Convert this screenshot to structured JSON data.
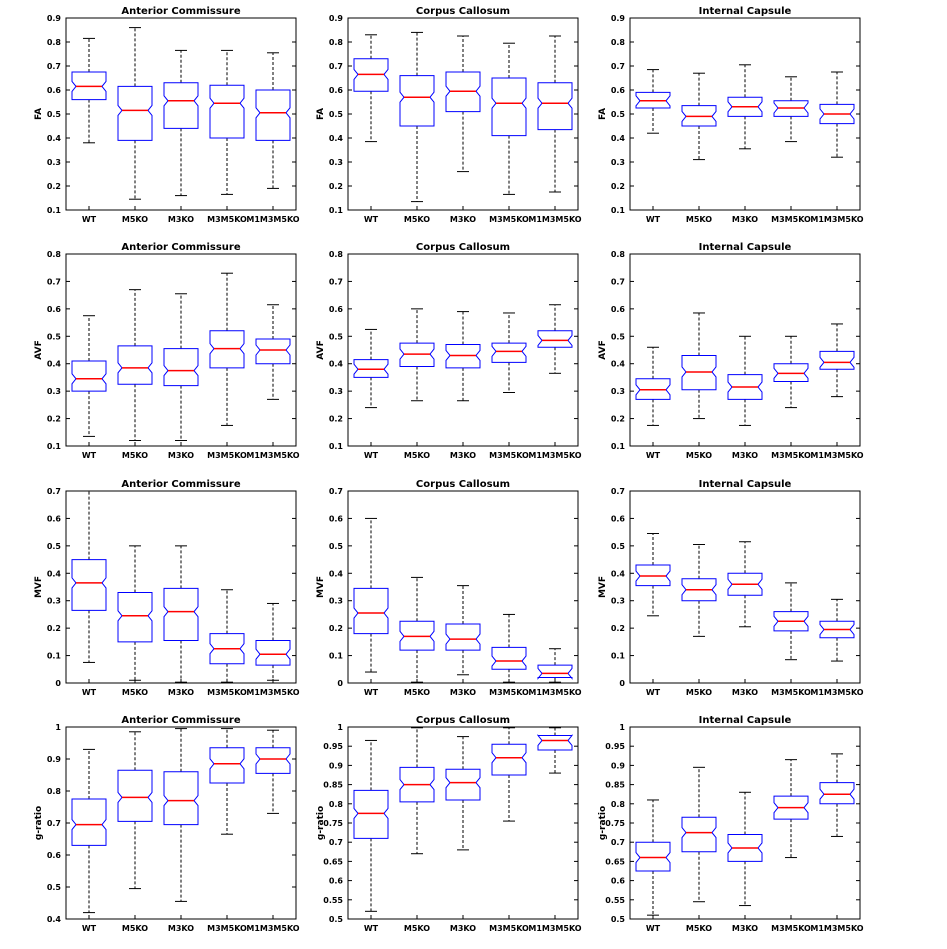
{
  "colors": {
    "box": "#0000ff",
    "median": "#ff0000",
    "whisker": "#000000",
    "frame": "#000000",
    "background": "#ffffff"
  },
  "chart_data": [
    {
      "type": "box",
      "title": "Anterior Commissure",
      "ylabel": "FA",
      "ylim": [
        0.1,
        0.9
      ],
      "yticks": [
        0.1,
        0.2,
        0.3,
        0.4,
        0.5,
        0.6,
        0.7,
        0.8,
        0.9
      ],
      "categories": [
        "WT",
        "M5KO",
        "M3KO",
        "M3M5KO",
        "M1M3M5KO"
      ],
      "boxes": [
        {
          "whislo": 0.38,
          "q1": 0.56,
          "med": 0.615,
          "q3": 0.675,
          "whishi": 0.815
        },
        {
          "whislo": 0.145,
          "q1": 0.39,
          "med": 0.515,
          "q3": 0.615,
          "whishi": 0.86
        },
        {
          "whislo": 0.16,
          "q1": 0.44,
          "med": 0.555,
          "q3": 0.63,
          "whishi": 0.765
        },
        {
          "whislo": 0.165,
          "q1": 0.4,
          "med": 0.545,
          "q3": 0.62,
          "whishi": 0.765
        },
        {
          "whislo": 0.19,
          "q1": 0.39,
          "med": 0.505,
          "q3": 0.6,
          "whishi": 0.755
        }
      ]
    },
    {
      "type": "box",
      "title": "Corpus Callosum",
      "ylabel": "FA",
      "ylim": [
        0.1,
        0.9
      ],
      "yticks": [
        0.1,
        0.2,
        0.3,
        0.4,
        0.5,
        0.6,
        0.7,
        0.8,
        0.9
      ],
      "categories": [
        "WT",
        "M5KO",
        "M3KO",
        "M3M5KO",
        "M1M3M5KO"
      ],
      "boxes": [
        {
          "whislo": 0.385,
          "q1": 0.595,
          "med": 0.665,
          "q3": 0.73,
          "whishi": 0.83
        },
        {
          "whislo": 0.135,
          "q1": 0.45,
          "med": 0.57,
          "q3": 0.66,
          "whishi": 0.84
        },
        {
          "whislo": 0.26,
          "q1": 0.51,
          "med": 0.595,
          "q3": 0.675,
          "whishi": 0.825
        },
        {
          "whislo": 0.165,
          "q1": 0.41,
          "med": 0.545,
          "q3": 0.65,
          "whishi": 0.795
        },
        {
          "whislo": 0.175,
          "q1": 0.435,
          "med": 0.545,
          "q3": 0.63,
          "whishi": 0.825
        }
      ]
    },
    {
      "type": "box",
      "title": "Internal Capsule",
      "ylabel": "FA",
      "ylim": [
        0.1,
        0.9
      ],
      "yticks": [
        0.1,
        0.2,
        0.3,
        0.4,
        0.5,
        0.6,
        0.7,
        0.8,
        0.9
      ],
      "categories": [
        "WT",
        "M5KO",
        "M3KO",
        "M3M5KO",
        "M1M3M5KO"
      ],
      "boxes": [
        {
          "whislo": 0.42,
          "q1": 0.525,
          "med": 0.555,
          "q3": 0.59,
          "whishi": 0.685
        },
        {
          "whislo": 0.31,
          "q1": 0.45,
          "med": 0.49,
          "q3": 0.535,
          "whishi": 0.67
        },
        {
          "whislo": 0.355,
          "q1": 0.49,
          "med": 0.53,
          "q3": 0.57,
          "whishi": 0.705
        },
        {
          "whislo": 0.385,
          "q1": 0.49,
          "med": 0.525,
          "q3": 0.555,
          "whishi": 0.655
        },
        {
          "whislo": 0.32,
          "q1": 0.46,
          "med": 0.5,
          "q3": 0.54,
          "whishi": 0.675
        }
      ]
    },
    {
      "type": "box",
      "title": "Anterior Commissure",
      "ylabel": "AVF",
      "ylim": [
        0.1,
        0.8
      ],
      "yticks": [
        0.1,
        0.2,
        0.3,
        0.4,
        0.5,
        0.6,
        0.7,
        0.8
      ],
      "categories": [
        "WT",
        "M5KO",
        "M3KO",
        "M3M5KO",
        "M1M3M5KO"
      ],
      "boxes": [
        {
          "whislo": 0.135,
          "q1": 0.3,
          "med": 0.345,
          "q3": 0.41,
          "whishi": 0.575
        },
        {
          "whislo": 0.12,
          "q1": 0.325,
          "med": 0.385,
          "q3": 0.465,
          "whishi": 0.67
        },
        {
          "whislo": 0.12,
          "q1": 0.32,
          "med": 0.375,
          "q3": 0.455,
          "whishi": 0.655
        },
        {
          "whislo": 0.175,
          "q1": 0.385,
          "med": 0.455,
          "q3": 0.52,
          "whishi": 0.73
        },
        {
          "whislo": 0.27,
          "q1": 0.4,
          "med": 0.45,
          "q3": 0.49,
          "whishi": 0.615
        }
      ]
    },
    {
      "type": "box",
      "title": "Corpus Callosum",
      "ylabel": "AVF",
      "ylim": [
        0.1,
        0.8
      ],
      "yticks": [
        0.1,
        0.2,
        0.3,
        0.4,
        0.5,
        0.6,
        0.7,
        0.8
      ],
      "categories": [
        "WT",
        "M5KO",
        "M3KO",
        "M3M5KO",
        "M1M3M5KO"
      ],
      "boxes": [
        {
          "whislo": 0.24,
          "q1": 0.35,
          "med": 0.38,
          "q3": 0.415,
          "whishi": 0.525
        },
        {
          "whislo": 0.265,
          "q1": 0.39,
          "med": 0.435,
          "q3": 0.475,
          "whishi": 0.6
        },
        {
          "whislo": 0.265,
          "q1": 0.385,
          "med": 0.43,
          "q3": 0.47,
          "whishi": 0.59
        },
        {
          "whislo": 0.295,
          "q1": 0.405,
          "med": 0.445,
          "q3": 0.475,
          "whishi": 0.585
        },
        {
          "whislo": 0.365,
          "q1": 0.46,
          "med": 0.485,
          "q3": 0.52,
          "whishi": 0.615
        }
      ]
    },
    {
      "type": "box",
      "title": "Internal Capsule",
      "ylabel": "AVF",
      "ylim": [
        0.1,
        0.8
      ],
      "yticks": [
        0.1,
        0.2,
        0.3,
        0.4,
        0.5,
        0.6,
        0.7,
        0.8
      ],
      "categories": [
        "WT",
        "M5KO",
        "M3KO",
        "M3M5KO",
        "M1M3M5KO"
      ],
      "boxes": [
        {
          "whislo": 0.175,
          "q1": 0.27,
          "med": 0.305,
          "q3": 0.345,
          "whishi": 0.46
        },
        {
          "whislo": 0.2,
          "q1": 0.305,
          "med": 0.37,
          "q3": 0.43,
          "whishi": 0.585
        },
        {
          "whislo": 0.175,
          "q1": 0.27,
          "med": 0.315,
          "q3": 0.36,
          "whishi": 0.5
        },
        {
          "whislo": 0.24,
          "q1": 0.335,
          "med": 0.365,
          "q3": 0.4,
          "whishi": 0.5
        },
        {
          "whislo": 0.28,
          "q1": 0.38,
          "med": 0.405,
          "q3": 0.445,
          "whishi": 0.545
        }
      ]
    },
    {
      "type": "box",
      "title": "Anterior Commissure",
      "ylabel": "MVF",
      "ylim": [
        0,
        0.7
      ],
      "yticks": [
        0,
        0.1,
        0.2,
        0.3,
        0.4,
        0.5,
        0.6,
        0.7
      ],
      "categories": [
        "WT",
        "M5KO",
        "M3KO",
        "M3M5KO",
        "M1M3M5KO"
      ],
      "boxes": [
        {
          "whislo": 0.075,
          "q1": 0.265,
          "med": 0.365,
          "q3": 0.45,
          "whishi": 0.7
        },
        {
          "whislo": 0.01,
          "q1": 0.15,
          "med": 0.245,
          "q3": 0.33,
          "whishi": 0.5
        },
        {
          "whislo": 0.003,
          "q1": 0.155,
          "med": 0.26,
          "q3": 0.345,
          "whishi": 0.5
        },
        {
          "whislo": 0.003,
          "q1": 0.07,
          "med": 0.125,
          "q3": 0.18,
          "whishi": 0.34
        },
        {
          "whislo": 0.01,
          "q1": 0.065,
          "med": 0.105,
          "q3": 0.155,
          "whishi": 0.29
        }
      ]
    },
    {
      "type": "box",
      "title": "Corpus Callosum",
      "ylabel": "MVF",
      "ylim": [
        0,
        0.7
      ],
      "yticks": [
        0,
        0.1,
        0.2,
        0.3,
        0.4,
        0.5,
        0.6,
        0.7
      ],
      "categories": [
        "WT",
        "M5KO",
        "M3KO",
        "M3M5KO",
        "M1M3M5KO"
      ],
      "boxes": [
        {
          "whislo": 0.04,
          "q1": 0.18,
          "med": 0.255,
          "q3": 0.345,
          "whishi": 0.6
        },
        {
          "whislo": 0.003,
          "q1": 0.12,
          "med": 0.17,
          "q3": 0.225,
          "whishi": 0.385
        },
        {
          "whislo": 0.03,
          "q1": 0.12,
          "med": 0.16,
          "q3": 0.215,
          "whishi": 0.355
        },
        {
          "whislo": 0.003,
          "q1": 0.05,
          "med": 0.08,
          "q3": 0.13,
          "whishi": 0.25
        },
        {
          "whislo": 0.003,
          "q1": 0.02,
          "med": 0.035,
          "q3": 0.065,
          "whishi": 0.125
        }
      ]
    },
    {
      "type": "box",
      "title": "Internal Capsule",
      "ylabel": "MVF",
      "ylim": [
        0,
        0.7
      ],
      "yticks": [
        0,
        0.1,
        0.2,
        0.3,
        0.4,
        0.5,
        0.6,
        0.7
      ],
      "categories": [
        "WT",
        "M5KO",
        "M3KO",
        "M3M5KO",
        "M1M3M5KO"
      ],
      "boxes": [
        {
          "whislo": 0.245,
          "q1": 0.355,
          "med": 0.39,
          "q3": 0.43,
          "whishi": 0.545
        },
        {
          "whislo": 0.17,
          "q1": 0.3,
          "med": 0.34,
          "q3": 0.38,
          "whishi": 0.505
        },
        {
          "whislo": 0.205,
          "q1": 0.32,
          "med": 0.36,
          "q3": 0.4,
          "whishi": 0.515
        },
        {
          "whislo": 0.085,
          "q1": 0.19,
          "med": 0.225,
          "q3": 0.26,
          "whishi": 0.365
        },
        {
          "whislo": 0.08,
          "q1": 0.165,
          "med": 0.195,
          "q3": 0.225,
          "whishi": 0.305
        }
      ]
    },
    {
      "type": "box",
      "title": "Anterior Commissure",
      "ylabel": "g-ratio",
      "ylim": [
        0.4,
        1
      ],
      "yticks": [
        0.4,
        0.5,
        0.6,
        0.7,
        0.8,
        0.9,
        1
      ],
      "categories": [
        "WT",
        "M5KO",
        "M3KO",
        "M3M5KO",
        "M1M3M5KO"
      ],
      "boxes": [
        {
          "whislo": 0.42,
          "q1": 0.63,
          "med": 0.695,
          "q3": 0.775,
          "whishi": 0.93
        },
        {
          "whislo": 0.495,
          "q1": 0.705,
          "med": 0.78,
          "q3": 0.865,
          "whishi": 0.985
        },
        {
          "whislo": 0.455,
          "q1": 0.695,
          "med": 0.77,
          "q3": 0.86,
          "whishi": 0.995
        },
        {
          "whislo": 0.665,
          "q1": 0.825,
          "med": 0.885,
          "q3": 0.935,
          "whishi": 0.995
        },
        {
          "whislo": 0.73,
          "q1": 0.855,
          "med": 0.9,
          "q3": 0.935,
          "whishi": 0.99
        }
      ]
    },
    {
      "type": "box",
      "title": "Corpus Callosum",
      "ylabel": "g-ratio",
      "ylim": [
        0.5,
        1
      ],
      "yticks": [
        0.5,
        0.55,
        0.6,
        0.65,
        0.7,
        0.75,
        0.8,
        0.85,
        0.9,
        0.95,
        1
      ],
      "categories": [
        "WT",
        "M5KO",
        "M3KO",
        "M3M5KO",
        "M1M3M5KO"
      ],
      "boxes": [
        {
          "whislo": 0.52,
          "q1": 0.71,
          "med": 0.775,
          "q3": 0.835,
          "whishi": 0.965
        },
        {
          "whislo": 0.67,
          "q1": 0.805,
          "med": 0.85,
          "q3": 0.895,
          "whishi": 0.998
        },
        {
          "whislo": 0.68,
          "q1": 0.81,
          "med": 0.855,
          "q3": 0.89,
          "whishi": 0.975
        },
        {
          "whislo": 0.755,
          "q1": 0.875,
          "med": 0.92,
          "q3": 0.955,
          "whishi": 0.998
        },
        {
          "whislo": 0.88,
          "q1": 0.94,
          "med": 0.965,
          "q3": 0.978,
          "whishi": 0.998
        }
      ]
    },
    {
      "type": "box",
      "title": "Internal Capsule",
      "ylabel": "g-ratio",
      "ylim": [
        0.5,
        1
      ],
      "yticks": [
        0.5,
        0.55,
        0.6,
        0.65,
        0.7,
        0.75,
        0.8,
        0.85,
        0.9,
        0.95,
        1
      ],
      "categories": [
        "WT",
        "M5KO",
        "M3KO",
        "M3M5KO",
        "M1M3M5KO"
      ],
      "boxes": [
        {
          "whislo": 0.51,
          "q1": 0.625,
          "med": 0.66,
          "q3": 0.7,
          "whishi": 0.81
        },
        {
          "whislo": 0.545,
          "q1": 0.675,
          "med": 0.725,
          "q3": 0.765,
          "whishi": 0.895
        },
        {
          "whislo": 0.535,
          "q1": 0.65,
          "med": 0.685,
          "q3": 0.72,
          "whishi": 0.83
        },
        {
          "whislo": 0.66,
          "q1": 0.76,
          "med": 0.79,
          "q3": 0.82,
          "whishi": 0.915
        },
        {
          "whislo": 0.715,
          "q1": 0.8,
          "med": 0.825,
          "q3": 0.855,
          "whishi": 0.93
        }
      ]
    }
  ]
}
